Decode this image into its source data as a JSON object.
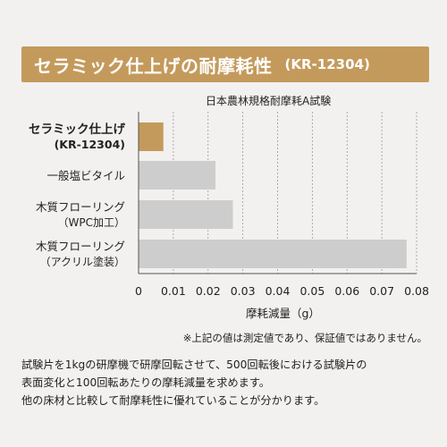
{
  "header": {
    "title": "セラミック仕上げの耐摩耗性",
    "code": "(KR-12304)"
  },
  "chart_data": {
    "type": "bar",
    "orientation": "horizontal",
    "subtitle": "日本農林規格耐摩耗A試験",
    "categories": [
      {
        "line1": "セラミック仕上げ",
        "line2": "(KR-12304)"
      },
      {
        "line1": "一般塩ビタイル",
        "line2": ""
      },
      {
        "line1": "木質フローリング",
        "line2": "（WPC加工）"
      },
      {
        "line1": "木質フローリング",
        "line2": "（アクリル塗装）"
      }
    ],
    "values": [
      0.007,
      0.022,
      0.027,
      0.077
    ],
    "colors": [
      "#c49a5c",
      "#cdcdcd",
      "#cdcdcd",
      "#cdcdcd"
    ],
    "xlim": [
      0,
      0.08
    ],
    "xticks": [
      "0",
      "0.01",
      "0.02",
      "0.03",
      "0.04",
      "0.05",
      "0.06",
      "0.07",
      "0.08"
    ],
    "xlabel": "摩耗減量（g）",
    "grid": true
  },
  "note": "※上記の値は測定値であり、保証値ではありません。",
  "description": [
    "試験片を1kgの研摩機で研摩回転させて、500回転後における試験片の",
    "表面変化と100回転あたりの摩耗減量を求めます。",
    "他の床材と比較して耐摩耗性に優れていることが分かります。"
  ]
}
